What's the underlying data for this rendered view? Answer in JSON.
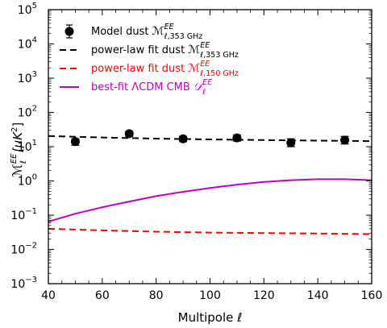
{
  "chart_data": {
    "type": "line",
    "xlabel": "Multipole ℓ",
    "ylabel": "ℳℓEE [μK²]",
    "ylabel_parts": {
      "main": "ℳ",
      "sub": "ℓ",
      "sup": "EE",
      "unit": "[μK",
      "unit_sup": "2",
      "unit_end": "]"
    },
    "xlim": [
      40,
      160
    ],
    "ylim": [
      0.001,
      100000
    ],
    "yscale": "log",
    "grid": false,
    "legend_position": "top-left",
    "x_ticks": [
      40,
      60,
      80,
      100,
      120,
      140,
      160
    ],
    "x_tick_labels": [
      "40",
      "60",
      "80",
      "100",
      "120",
      "140",
      "160"
    ],
    "y_ticks": [
      {
        "value": 0.001,
        "base": "10",
        "exp": "−3"
      },
      {
        "value": 0.01,
        "base": "10",
        "exp": "−2"
      },
      {
        "value": 0.1,
        "base": "10",
        "exp": "−1"
      },
      {
        "value": 1,
        "base": "10",
        "exp": "0"
      },
      {
        "value": 10,
        "base": "10",
        "exp": "1"
      },
      {
        "value": 100,
        "base": "10",
        "exp": "2"
      },
      {
        "value": 1000,
        "base": "10",
        "exp": "3"
      },
      {
        "value": 10000,
        "base": "10",
        "exp": "4"
      },
      {
        "value": 100000,
        "base": "10",
        "exp": "5"
      }
    ],
    "series": [
      {
        "name": "Model dust ℳℓ,353 GHzEE",
        "legend": {
          "pre": "Model dust ",
          "sym": "ℳ",
          "sup": "EE",
          "sub": "ℓ,353 GHz"
        },
        "kind": "errorbar",
        "color": "#000000",
        "x": [
          50,
          70,
          90,
          110,
          130,
          150
        ],
        "y": [
          14,
          24,
          17,
          18,
          13,
          15.5
        ],
        "y_low": [
          11,
          20,
          14,
          14.5,
          10,
          12
        ],
        "y_high": [
          17,
          28,
          20,
          22,
          17,
          20
        ]
      },
      {
        "name": "power-law fit dust ℳℓ,353 GHzEE",
        "legend": {
          "pre": "power-law fit dust ",
          "sym": "ℳ",
          "sup": "EE",
          "sub": "ℓ,353 GHz"
        },
        "kind": "dashed",
        "color": "#000000",
        "x": [
          40,
          60,
          80,
          100,
          120,
          140,
          160
        ],
        "y": [
          20.5,
          18.5,
          17.2,
          16.3,
          15.6,
          15.0,
          14.5
        ]
      },
      {
        "name": "power-law fit dust ℳℓ,150 GHzEE",
        "legend": {
          "pre": "power-law fit dust ",
          "sym": "ℳ",
          "sup": "EE",
          "sub": "ℓ,150 GHz"
        },
        "kind": "dashed",
        "color": "#ff0000",
        "x": [
          40,
          60,
          80,
          100,
          120,
          140,
          160
        ],
        "y": [
          0.04,
          0.036,
          0.033,
          0.031,
          0.03,
          0.029,
          0.028
        ]
      },
      {
        "name": "best-fit ΛCDM CMB 𝒟ℓEE",
        "legend": {
          "pre": "best-fit ΛCDM CMB ",
          "sym": "𝒟",
          "sup": "EE",
          "sub": "ℓ"
        },
        "kind": "solid",
        "color": "#bf00bf",
        "x": [
          40,
          50,
          60,
          70,
          80,
          90,
          100,
          110,
          120,
          130,
          140,
          150,
          160
        ],
        "y": [
          0.065,
          0.11,
          0.17,
          0.25,
          0.36,
          0.48,
          0.62,
          0.78,
          0.93,
          1.05,
          1.12,
          1.12,
          1.05
        ]
      }
    ]
  }
}
